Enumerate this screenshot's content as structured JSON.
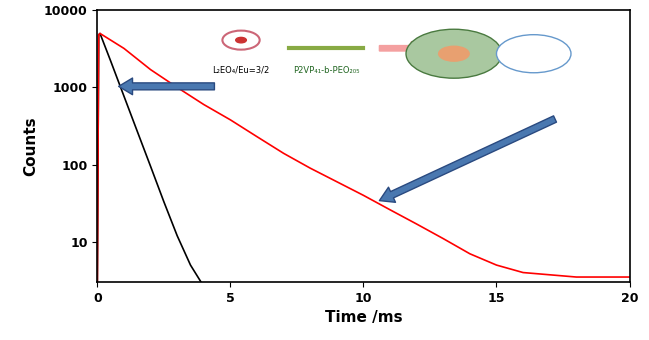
{
  "chart_data": {
    "type": "line",
    "x_label": "Time /ms",
    "y_label": "Counts",
    "log": "y",
    "xlim": [
      0,
      20
    ],
    "xticks": [
      0,
      5,
      10,
      15,
      20
    ],
    "ylim": [
      3,
      10000
    ],
    "yticks": [
      10,
      100,
      1000,
      10000
    ],
    "annotations": [
      {
        "text": "L₂EO₄/Eu=3/2"
      },
      {
        "text": "P2VP₄₁-b-PEO₂₀₅"
      }
    ],
    "series": [
      {
        "color": "#000000",
        "x": [
          0,
          0.05,
          0.1,
          0.5,
          1,
          1.5,
          2,
          2.5,
          3,
          3.5,
          3.9
        ],
        "values": [
          3,
          4800,
          5000,
          2200,
          770,
          270,
          95,
          33,
          12,
          5,
          3
        ]
      },
      {
        "color": "#ff0000",
        "x": [
          0,
          0.05,
          0.1,
          1,
          2,
          3,
          4,
          5,
          6,
          7,
          8,
          9,
          10,
          11,
          12,
          13,
          14,
          15,
          16,
          18,
          20
        ],
        "values": [
          3,
          4800,
          5000,
          3200,
          1700,
          1000,
          600,
          380,
          230,
          140,
          90,
          60,
          40,
          26,
          17,
          11,
          7,
          5,
          4,
          3.5,
          3.5
        ]
      }
    ]
  }
}
